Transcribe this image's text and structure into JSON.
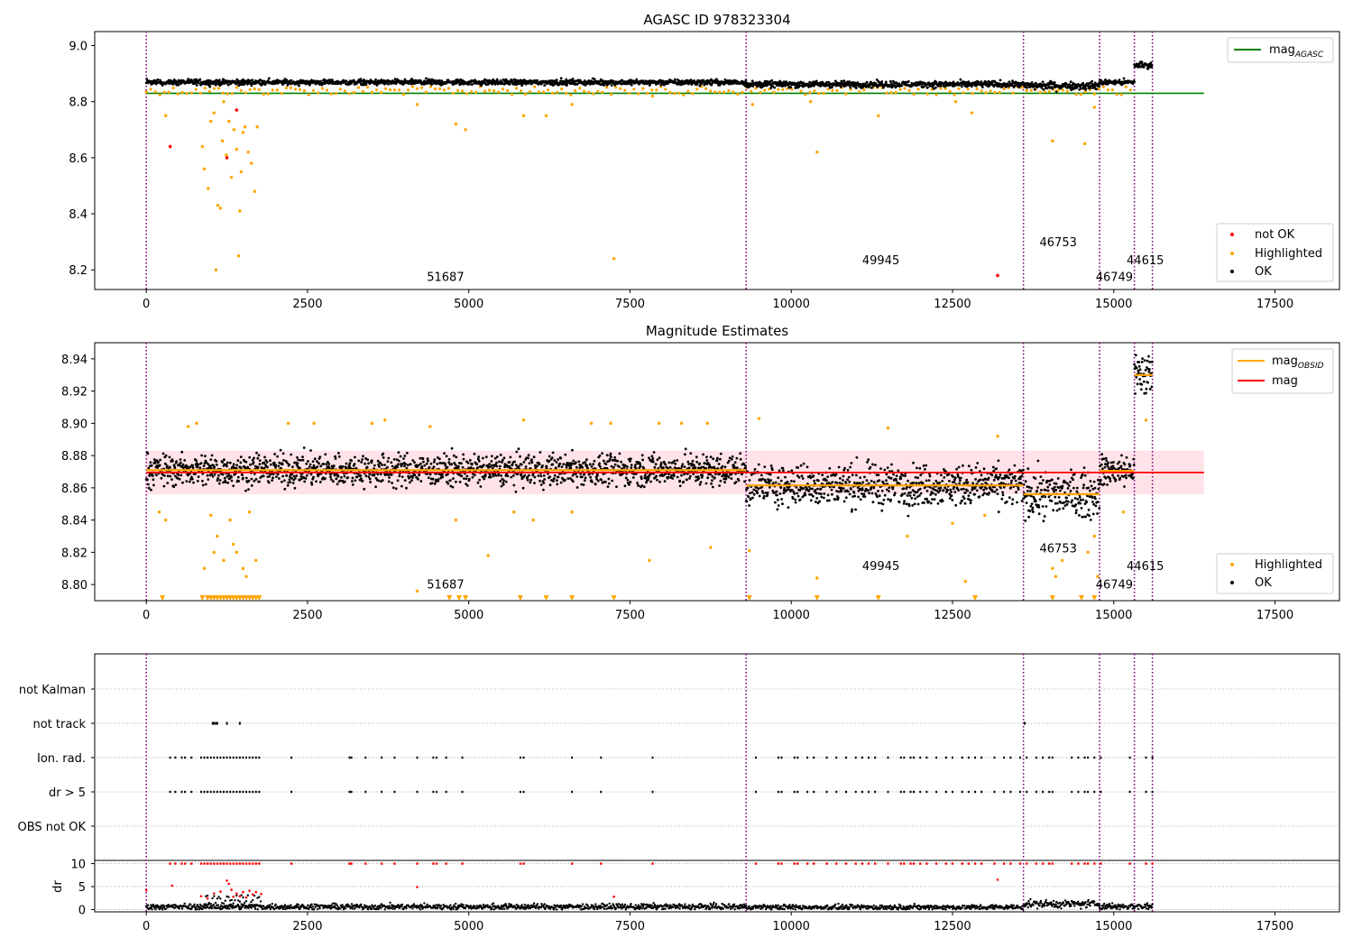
{
  "figure": {
    "colors": {
      "ok": "#000000",
      "highlighted": "#ffa500",
      "not_ok": "#ff0000",
      "agasc": "#008000",
      "obsid": "#ffa500",
      "mean": "#ff0000",
      "band": "#ffc0cb",
      "vline": "#800080"
    }
  },
  "chart_data": [
    {
      "type": "scatter",
      "title": "AGASC ID 978323304",
      "xlim": [
        -800,
        18500
      ],
      "ylim": [
        8.13,
        9.05
      ],
      "xticks": [
        "0",
        "2500",
        "5000",
        "7500",
        "10000",
        "12500",
        "15000",
        "17500"
      ],
      "yticks": [
        "8.2",
        "8.4",
        "8.6",
        "8.8",
        "9.0"
      ],
      "legend_upper": {
        "placement": "upper right",
        "entries": [
          {
            "label": "mag",
            "sub": "AGASC",
            "color": "#008000"
          }
        ]
      },
      "legend_lower": {
        "placement": "lower right",
        "entries": [
          {
            "label": "not OK",
            "color": "#ff0000"
          },
          {
            "label": "Highlighted",
            "color": "#ffa500"
          },
          {
            "label": "OK",
            "color": "#000000"
          }
        ]
      },
      "agasc_mag": 8.83,
      "vlines": [
        0,
        9300,
        13600,
        14780,
        15320,
        15600
      ],
      "obsid_labels": [
        {
          "text": "51687",
          "x": 4350,
          "y": 8.16
        },
        {
          "text": "49945",
          "x": 11100,
          "y": 8.22
        },
        {
          "text": "46753",
          "x": 13850,
          "y": 8.285
        },
        {
          "text": "46749",
          "x": 14720,
          "y": 8.16
        },
        {
          "text": "44615",
          "x": 15200,
          "y": 8.22
        }
      ],
      "segments": [
        {
          "x": [
            0,
            9300
          ],
          "center": 8.869,
          "spread": 0.007
        },
        {
          "x": [
            9300,
            13600
          ],
          "center": 8.862,
          "spread": 0.008
        },
        {
          "x": [
            13600,
            14780
          ],
          "center": 8.857,
          "spread": 0.01
        },
        {
          "x": [
            14780,
            15320
          ],
          "center": 8.869,
          "spread": 0.007
        },
        {
          "x": [
            15320,
            15600
          ],
          "center": 8.93,
          "spread": 0.01
        }
      ],
      "highlighted": [
        [
          300,
          8.75
        ],
        [
          870,
          8.64
        ],
        [
          900,
          8.56
        ],
        [
          960,
          8.49
        ],
        [
          1000,
          8.73
        ],
        [
          1050,
          8.76
        ],
        [
          1080,
          8.2
        ],
        [
          1110,
          8.43
        ],
        [
          1150,
          8.42
        ],
        [
          1180,
          8.66
        ],
        [
          1200,
          8.8
        ],
        [
          1240,
          8.61
        ],
        [
          1280,
          8.73
        ],
        [
          1320,
          8.53
        ],
        [
          1360,
          8.7
        ],
        [
          1400,
          8.63
        ],
        [
          1430,
          8.25
        ],
        [
          1450,
          8.41
        ],
        [
          1470,
          8.55
        ],
        [
          1500,
          8.69
        ],
        [
          1530,
          8.71
        ],
        [
          1580,
          8.62
        ],
        [
          1630,
          8.58
        ],
        [
          1680,
          8.48
        ],
        [
          1720,
          8.71
        ],
        [
          4200,
          8.79
        ],
        [
          4800,
          8.72
        ],
        [
          4950,
          8.7
        ],
        [
          5850,
          8.75
        ],
        [
          6200,
          8.75
        ],
        [
          6600,
          8.79
        ],
        [
          7250,
          8.24
        ],
        [
          7850,
          8.82
        ],
        [
          9400,
          8.79
        ],
        [
          10400,
          8.62
        ],
        [
          10300,
          8.8
        ],
        [
          11350,
          8.75
        ],
        [
          12550,
          8.8
        ],
        [
          12800,
          8.76
        ],
        [
          14050,
          8.66
        ],
        [
          14550,
          8.65
        ],
        [
          14700,
          8.78
        ]
      ],
      "not_ok": [
        [
          370,
          8.64
        ],
        [
          1250,
          8.6
        ],
        [
          1400,
          8.77
        ],
        [
          13200,
          8.18
        ]
      ]
    },
    {
      "type": "scatter",
      "title": "Magnitude Estimates",
      "xlim": [
        -800,
        18500
      ],
      "ylim": [
        8.79,
        8.95
      ],
      "xticks": [
        "0",
        "2500",
        "5000",
        "7500",
        "10000",
        "12500",
        "15000",
        "17500"
      ],
      "yticks": [
        "8.80",
        "8.82",
        "8.84",
        "8.86",
        "8.88",
        "8.90",
        "8.92",
        "8.94"
      ],
      "legend_upper": {
        "placement": "upper right",
        "entries": [
          {
            "label": "mag",
            "sub": "OBSID",
            "color": "#ffa500"
          },
          {
            "label": "mag",
            "color": "#ff0000"
          }
        ]
      },
      "legend_lower": {
        "placement": "lower right",
        "entries": [
          {
            "label": "Highlighted",
            "color": "#ffa500"
          },
          {
            "label": "OK",
            "color": "#000000"
          }
        ]
      },
      "mean_mag": 8.8695,
      "band": [
        8.856,
        8.883
      ],
      "vlines": [
        0,
        9300,
        13600,
        14780,
        15320,
        15600
      ],
      "obsid_mags": [
        {
          "x": [
            0,
            9300
          ],
          "y": 8.871
        },
        {
          "x": [
            9300,
            13600
          ],
          "y": 8.8615
        },
        {
          "x": [
            13600,
            14780
          ],
          "y": 8.856
        },
        {
          "x": [
            14780,
            15320
          ],
          "y": 8.8705
        },
        {
          "x": [
            15320,
            15600
          ],
          "y": 8.93
        }
      ],
      "obsid_labels": [
        {
          "text": "51687",
          "x": 4350,
          "y": 8.7975
        },
        {
          "text": "49945",
          "x": 11100,
          "y": 8.809
        },
        {
          "text": "46753",
          "x": 13850,
          "y": 8.82
        },
        {
          "text": "46749",
          "x": 14720,
          "y": 8.7975
        },
        {
          "text": "44615",
          "x": 15200,
          "y": 8.809
        }
      ],
      "segments": [
        {
          "x": [
            0,
            9300
          ],
          "center": 8.871,
          "spread": 0.007
        },
        {
          "x": [
            9300,
            13600
          ],
          "center": 8.8615,
          "spread": 0.009
        },
        {
          "x": [
            13600,
            14780
          ],
          "center": 8.856,
          "spread": 0.01
        },
        {
          "x": [
            14780,
            15320
          ],
          "center": 8.8705,
          "spread": 0.007
        },
        {
          "x": [
            15320,
            15600
          ],
          "center": 8.93,
          "spread": 0.01
        }
      ],
      "highlighted": [
        [
          200,
          8.845
        ],
        [
          300,
          8.84
        ],
        [
          650,
          8.898
        ],
        [
          780,
          8.9
        ],
        [
          900,
          8.81
        ],
        [
          1000,
          8.843
        ],
        [
          1050,
          8.82
        ],
        [
          1100,
          8.83
        ],
        [
          1200,
          8.815
        ],
        [
          1300,
          8.84
        ],
        [
          1350,
          8.825
        ],
        [
          1400,
          8.82
        ],
        [
          1500,
          8.81
        ],
        [
          1550,
          8.805
        ],
        [
          1600,
          8.845
        ],
        [
          1700,
          8.815
        ],
        [
          2200,
          8.9
        ],
        [
          2600,
          8.9
        ],
        [
          3500,
          8.9
        ],
        [
          3700,
          8.902
        ],
        [
          4200,
          8.796
        ],
        [
          4400,
          8.898
        ],
        [
          4800,
          8.84
        ],
        [
          5300,
          8.818
        ],
        [
          5700,
          8.845
        ],
        [
          5850,
          8.902
        ],
        [
          6000,
          8.84
        ],
        [
          6600,
          8.845
        ],
        [
          6900,
          8.9
        ],
        [
          7200,
          8.9
        ],
        [
          7800,
          8.815
        ],
        [
          7950,
          8.9
        ],
        [
          8300,
          8.9
        ],
        [
          8700,
          8.9
        ],
        [
          8750,
          8.823
        ],
        [
          9350,
          8.821
        ],
        [
          9500,
          8.903
        ],
        [
          10400,
          8.804
        ],
        [
          11500,
          8.897
        ],
        [
          11800,
          8.83
        ],
        [
          12500,
          8.838
        ],
        [
          12700,
          8.802
        ],
        [
          13000,
          8.843
        ],
        [
          13200,
          8.892
        ],
        [
          14050,
          8.81
        ],
        [
          14100,
          8.805
        ],
        [
          14200,
          8.815
        ],
        [
          14600,
          8.82
        ],
        [
          14700,
          8.83
        ],
        [
          14750,
          8.805
        ],
        [
          15150,
          8.845
        ],
        [
          15500,
          8.902
        ]
      ],
      "triangles": [
        250,
        870,
        950,
        1000,
        1050,
        1100,
        1150,
        1200,
        1250,
        1300,
        1350,
        1400,
        1450,
        1500,
        1550,
        1600,
        1650,
        1700,
        1750,
        4700,
        4850,
        4950,
        5800,
        6200,
        6600,
        7250,
        9350,
        10400,
        11350,
        12850,
        14050,
        14500,
        14700
      ]
    },
    {
      "type": "scatter",
      "xlim": [
        -800,
        18500
      ],
      "xticks": [
        "0",
        "2500",
        "5000",
        "7500",
        "10000",
        "12500",
        "15000",
        "17500"
      ],
      "categories": [
        "not Kalman",
        "not track",
        "Ion. rad.",
        "dr > 5",
        "OBS not OK"
      ],
      "dr_ylim": [
        -0.5,
        10.5
      ],
      "dr_ylabel": "dr",
      "dr_yticks": [
        "0",
        "5",
        "10"
      ],
      "vlines": [
        0,
        9300,
        13600,
        14780,
        15320,
        15600
      ],
      "not_track_x": [
        1030,
        1050,
        1080,
        1100,
        1250,
        1450,
        13620
      ],
      "flag_x": [
        370,
        450,
        550,
        600,
        700,
        850,
        900,
        950,
        1000,
        1050,
        1100,
        1150,
        1200,
        1250,
        1300,
        1350,
        1400,
        1450,
        1500,
        1550,
        1600,
        1650,
        1700,
        1750,
        2250,
        3150,
        3180,
        3400,
        3650,
        3850,
        4200,
        4450,
        4500,
        4650,
        4900,
        5800,
        5850,
        6600,
        7050,
        7850,
        9450,
        9800,
        9850,
        10050,
        10100,
        10250,
        10350,
        10550,
        10700,
        10850,
        11000,
        11100,
        11200,
        11300,
        11500,
        11700,
        11750,
        11850,
        11900,
        12000,
        12100,
        12250,
        12400,
        12500,
        12650,
        12750,
        12850,
        12950,
        13150,
        13300,
        13400,
        13550,
        13650,
        13800,
        13900,
        14000,
        14050,
        14350,
        14450,
        14550,
        14600,
        14700,
        14800,
        15250,
        15500,
        15600
      ],
      "dr_segments": [
        {
          "x": [
            0,
            9300
          ],
          "center": 0.6,
          "spread": 0.45
        },
        {
          "x": [
            9300,
            13600
          ],
          "center": 0.5,
          "spread": 0.4
        },
        {
          "x": [
            13600,
            14780
          ],
          "center": 1.2,
          "spread": 0.6
        },
        {
          "x": [
            14780,
            15600
          ],
          "center": 0.7,
          "spread": 0.5
        }
      ],
      "dr_red": [
        [
          0,
          4.2
        ],
        [
          400,
          5.2
        ],
        [
          850,
          2.9
        ],
        [
          950,
          2.4
        ],
        [
          1050,
          3.5
        ],
        [
          1150,
          3.9
        ],
        [
          1250,
          6.3
        ],
        [
          1280,
          5.6
        ],
        [
          1320,
          4.3
        ],
        [
          1350,
          2.8
        ],
        [
          1400,
          3.5
        ],
        [
          1450,
          2.9
        ],
        [
          1500,
          3.8
        ],
        [
          1550,
          2.6
        ],
        [
          1600,
          4.1
        ],
        [
          1650,
          3.3
        ],
        [
          1700,
          3.8
        ],
        [
          1780,
          3.4
        ],
        [
          4200,
          4.9
        ],
        [
          7250,
          2.8
        ],
        [
          13200,
          6.5
        ]
      ]
    }
  ]
}
